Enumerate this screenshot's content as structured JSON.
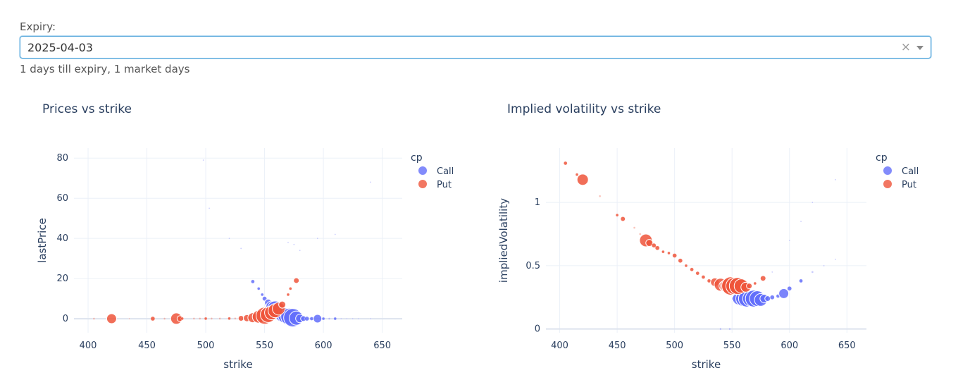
{
  "expiry": {
    "label": "Expiry:",
    "value": "2025-04-03",
    "clear_icon": "×",
    "info": "1 days till expiry, 1 market days"
  },
  "colors": {
    "call": "#636efa",
    "put": "#ef553b",
    "grid": "#ebf0f8"
  },
  "chart_data": [
    {
      "type": "scatter",
      "title": "Prices vs strike",
      "xlabel": "strike",
      "ylabel": "lastPrice",
      "xlim": [
        388,
        667
      ],
      "ylim": [
        -7,
        85
      ],
      "xticks": [
        400,
        450,
        500,
        550,
        600,
        650
      ],
      "yticks": [
        0,
        20,
        40,
        60,
        80
      ],
      "legend_title": "cp",
      "legend_position": "top-right",
      "series": [
        {
          "name": "Call",
          "points": [
            [
              498,
              79,
              1
            ],
            [
              503,
              55,
              1
            ],
            [
              520,
              40,
              1
            ],
            [
              530,
              35,
              1
            ],
            [
              540,
              18.5,
              2.5
            ],
            [
              545,
              15,
              2
            ],
            [
              548,
              12,
              2
            ],
            [
              550,
              10,
              3
            ],
            [
              553,
              8,
              5
            ],
            [
              556,
              6,
              8
            ],
            [
              559,
              5,
              11
            ],
            [
              561,
              4,
              10
            ],
            [
              563,
              3,
              9
            ],
            [
              565,
              2,
              10
            ],
            [
              568,
              1.5,
              11
            ],
            [
              571,
              1,
              12
            ],
            [
              574,
              0.5,
              13
            ],
            [
              577,
              0.3,
              10
            ],
            [
              580,
              0.1,
              6
            ],
            [
              583,
              0.05,
              4
            ],
            [
              586,
              0.02,
              3
            ],
            [
              590,
              0.01,
              2.5
            ],
            [
              595,
              0.01,
              6
            ],
            [
              600,
              0.01,
              2
            ],
            [
              605,
              0.01,
              1.5
            ],
            [
              610,
              0.01,
              2
            ],
            [
              615,
              0.01,
              1
            ],
            [
              620,
              0.01,
              1
            ],
            [
              625,
              0.01,
              1
            ],
            [
              630,
              0.01,
              1
            ],
            [
              640,
              0.01,
              1
            ],
            [
              570,
              38,
              1
            ],
            [
              575,
              37,
              1
            ],
            [
              580,
              34,
              1
            ],
            [
              595,
              40,
              1
            ],
            [
              610,
              42,
              1
            ],
            [
              640,
              68,
              1
            ]
          ]
        },
        {
          "name": "Put",
          "points": [
            [
              405,
              0.01,
              1.5
            ],
            [
              420,
              0.02,
              7
            ],
            [
              435,
              0.02,
              1
            ],
            [
              455,
              0.02,
              3
            ],
            [
              465,
              0.02,
              1.5
            ],
            [
              475,
              0.05,
              8
            ],
            [
              478,
              0.05,
              4
            ],
            [
              480,
              0.05,
              2
            ],
            [
              490,
              0.05,
              1.5
            ],
            [
              495,
              0.05,
              1.5
            ],
            [
              500,
              0.05,
              2
            ],
            [
              505,
              0.05,
              1.5
            ],
            [
              512,
              0.05,
              1.5
            ],
            [
              520,
              0.1,
              2
            ],
            [
              525,
              0.1,
              1.5
            ],
            [
              530,
              0.2,
              4
            ],
            [
              535,
              0.3,
              5
            ],
            [
              540,
              0.5,
              7
            ],
            [
              545,
              1,
              9
            ],
            [
              550,
              1.5,
              12
            ],
            [
              553,
              2,
              11
            ],
            [
              556,
              3,
              10
            ],
            [
              559,
              4,
              10
            ],
            [
              562,
              5,
              9
            ],
            [
              565,
              7,
              5
            ],
            [
              570,
              12,
              2
            ],
            [
              577,
              19,
              4
            ],
            [
              572,
              15,
              2
            ]
          ]
        }
      ]
    },
    {
      "type": "scatter",
      "title": "Implied volatility vs strike",
      "xlabel": "strike",
      "ylabel": "impliedVolatility",
      "xlim": [
        388,
        667
      ],
      "ylim": [
        -0.03,
        1.43
      ],
      "xticks": [
        400,
        450,
        500,
        550,
        600,
        650
      ],
      "yticks": [
        0,
        0.5,
        1
      ],
      "legend_title": "cp",
      "legend_position": "top-right",
      "series": [
        {
          "name": "Call",
          "points": [
            [
              540,
              0,
              1.5
            ],
            [
              548,
              0,
              1.5
            ],
            [
              552,
              0.24,
              4
            ],
            [
              556,
              0.24,
              9
            ],
            [
              560,
              0.24,
              11
            ],
            [
              563,
              0.24,
              12
            ],
            [
              566,
              0.24,
              11
            ],
            [
              569,
              0.24,
              12
            ],
            [
              572,
              0.24,
              11
            ],
            [
              575,
              0.23,
              9
            ],
            [
              578,
              0.24,
              6
            ],
            [
              581,
              0.24,
              4
            ],
            [
              585,
              0.25,
              3
            ],
            [
              590,
              0.26,
              2.5
            ],
            [
              595,
              0.28,
              7
            ],
            [
              600,
              0.32,
              3
            ],
            [
              610,
              0.38,
              2.5
            ],
            [
              620,
              0.45,
              1.5
            ],
            [
              630,
              0.5,
              1
            ],
            [
              640,
              0.55,
              1
            ],
            [
              600,
              0.7,
              1
            ],
            [
              610,
              0.85,
              1
            ],
            [
              620,
              1.0,
              1
            ],
            [
              640,
              1.18,
              1
            ],
            [
              585,
              0.45,
              1
            ]
          ]
        },
        {
          "name": "Put",
          "points": [
            [
              405,
              1.31,
              2.5
            ],
            [
              415,
              1.22,
              2
            ],
            [
              420,
              1.18,
              8
            ],
            [
              435,
              1.05,
              1.5
            ],
            [
              450,
              0.9,
              2
            ],
            [
              455,
              0.87,
              3.5
            ],
            [
              465,
              0.8,
              1.5
            ],
            [
              470,
              0.75,
              1.5
            ],
            [
              475,
              0.7,
              9
            ],
            [
              478,
              0.68,
              5
            ],
            [
              482,
              0.66,
              3
            ],
            [
              485,
              0.64,
              3
            ],
            [
              490,
              0.61,
              2
            ],
            [
              495,
              0.6,
              2
            ],
            [
              500,
              0.58,
              3
            ],
            [
              505,
              0.54,
              3
            ],
            [
              510,
              0.5,
              2
            ],
            [
              515,
              0.47,
              2.5
            ],
            [
              520,
              0.44,
              2.5
            ],
            [
              525,
              0.41,
              2.5
            ],
            [
              530,
              0.38,
              2.5
            ],
            [
              535,
              0.37,
              6
            ],
            [
              540,
              0.35,
              9
            ],
            [
              543,
              0.34,
              7
            ],
            [
              546,
              0.34,
              10
            ],
            [
              549,
              0.34,
              13
            ],
            [
              552,
              0.34,
              12
            ],
            [
              555,
              0.34,
              12
            ],
            [
              558,
              0.34,
              10
            ],
            [
              562,
              0.33,
              7
            ],
            [
              565,
              0.34,
              4
            ],
            [
              570,
              0.36,
              2
            ],
            [
              577,
              0.4,
              4
            ]
          ]
        }
      ]
    }
  ]
}
